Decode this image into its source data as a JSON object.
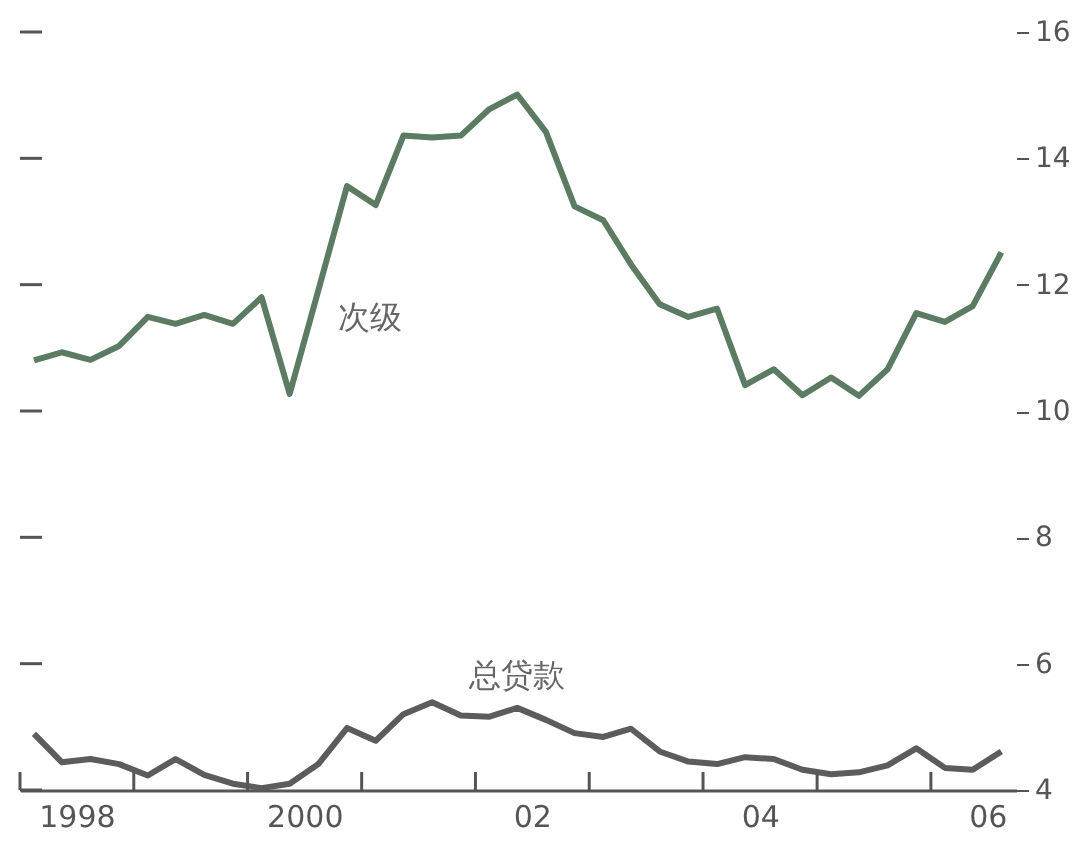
{
  "chart_data": {
    "type": "line",
    "x": [
      "1998-02-15",
      "1998-05-15",
      "1998-08-15",
      "1998-11-15",
      "1999-02-15",
      "1999-05-15",
      "1999-08-15",
      "1999-11-15",
      "2000-02-15",
      "2000-05-15",
      "2000-08-15",
      "2000-11-15",
      "2001-02-15",
      "2001-05-15",
      "2001-08-15",
      "2001-11-15",
      "2002-02-15",
      "2002-05-15",
      "2002-08-15",
      "2002-11-15",
      "2003-02-15",
      "2003-05-15",
      "2003-08-15",
      "2003-11-15",
      "2004-02-15",
      "2004-05-15",
      "2004-08-15",
      "2004-11-15",
      "2005-02-15",
      "2005-05-15",
      "2005-08-15",
      "2005-11-15",
      "2006-02-15",
      "2006-05-15",
      "2006-08-15"
    ],
    "series": [
      {
        "name": "次级",
        "color": "#5b7b62",
        "values": [
          10.8,
          10.93,
          10.81,
          11.03,
          11.49,
          11.38,
          11.52,
          11.38,
          11.8,
          10.27,
          11.91,
          13.56,
          13.26,
          14.36,
          14.33,
          14.36,
          14.78,
          15.01,
          14.42,
          13.24,
          13.02,
          12.32,
          11.69,
          11.49,
          11.62,
          10.41,
          10.66,
          10.25,
          10.53,
          10.24,
          10.66,
          11.55,
          11.41,
          11.66,
          12.51
        ]
      },
      {
        "name": "总贷款",
        "color": "#5c5c5c",
        "values": [
          4.89,
          4.44,
          4.49,
          4.41,
          4.23,
          4.49,
          4.24,
          4.1,
          4.03,
          4.1,
          4.41,
          4.98,
          4.78,
          5.2,
          5.39,
          5.18,
          5.16,
          5.3,
          5.11,
          4.9,
          4.84,
          4.97,
          4.61,
          4.45,
          4.41,
          4.52,
          4.49,
          4.32,
          4.25,
          4.28,
          4.39,
          4.66,
          4.35,
          4.32,
          4.61
        ]
      }
    ],
    "xlim": [
      "1998-01-01",
      "2006-10-01"
    ],
    "xticks": [
      {
        "value": "1998-01-01",
        "label": null
      },
      {
        "value": "1999-01-01",
        "label": null
      },
      {
        "value": "2000-01-01",
        "label": null
      },
      {
        "value": "2001-01-01",
        "label": null
      },
      {
        "value": "2002-01-01",
        "label": null
      },
      {
        "value": "2003-01-01",
        "label": null
      },
      {
        "value": "2004-01-01",
        "label": null
      },
      {
        "value": "2005-01-01",
        "label": null
      },
      {
        "value": "2006-01-01",
        "label": null
      },
      {
        "value": "1998-07-01",
        "label": "1998"
      },
      {
        "value": "2000-07-01",
        "label": "2000"
      },
      {
        "value": "2002-07-01",
        "label": "02"
      },
      {
        "value": "2004-07-01",
        "label": "04"
      },
      {
        "value": "2006-07-01",
        "label": "06"
      }
    ],
    "ylim": [
      4,
      16
    ],
    "yticks": [
      4,
      6,
      8,
      10,
      12,
      14,
      16
    ],
    "grid": false,
    "legend": false,
    "marker": "none",
    "line_style": "solid"
  }
}
